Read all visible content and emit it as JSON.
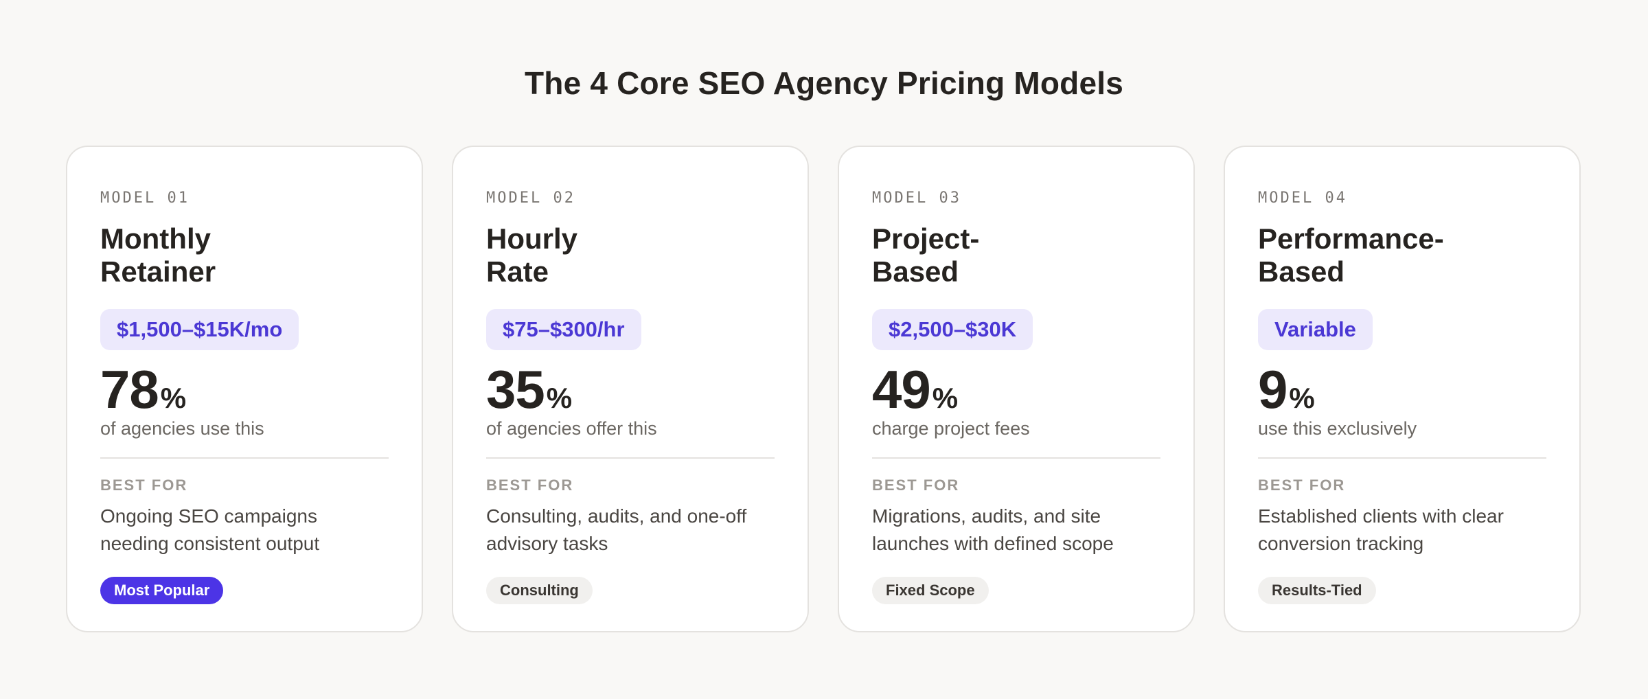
{
  "page": {
    "title": "The 4 Core SEO Agency Pricing Models"
  },
  "colors": {
    "background": "#f9f8f6",
    "accent": "#4c34e6",
    "price_pill_bg": "#ece9fc",
    "price_pill_text": "#4b38d4"
  },
  "cards": [
    {
      "model_label": "MODEL 01",
      "name_line1": "Monthly",
      "name_line2": "Retainer",
      "price": "$1,500–$15K/mo",
      "stat_number": "78",
      "stat_unit": "%",
      "stat_caption": "of agencies use this",
      "best_for_label": "BEST FOR",
      "best_for_text": "Ongoing SEO campaigns needing consistent output",
      "tag": "Most Popular"
    },
    {
      "model_label": "MODEL 02",
      "name_line1": "Hourly",
      "name_line2": "Rate",
      "price": "$75–$300/hr",
      "stat_number": "35",
      "stat_unit": "%",
      "stat_caption": "of agencies offer this",
      "best_for_label": "BEST FOR",
      "best_for_text": "Consulting, audits, and one-off advisory tasks",
      "tag": "Consulting"
    },
    {
      "model_label": "MODEL 03",
      "name_line1": "Project-",
      "name_line2": "Based",
      "price": "$2,500–$30K",
      "stat_number": "49",
      "stat_unit": "%",
      "stat_caption": "charge project fees",
      "best_for_label": "BEST FOR",
      "best_for_text": "Migrations, audits, and site launches with defined scope",
      "tag": "Fixed Scope"
    },
    {
      "model_label": "MODEL 04",
      "name_line1": "Performance-",
      "name_line2": "Based",
      "price": "Variable",
      "stat_number": "9",
      "stat_unit": "%",
      "stat_caption": "use this exclusively",
      "best_for_label": "BEST FOR",
      "best_for_text": "Established clients with clear conversion tracking",
      "tag": "Results-Tied"
    }
  ]
}
